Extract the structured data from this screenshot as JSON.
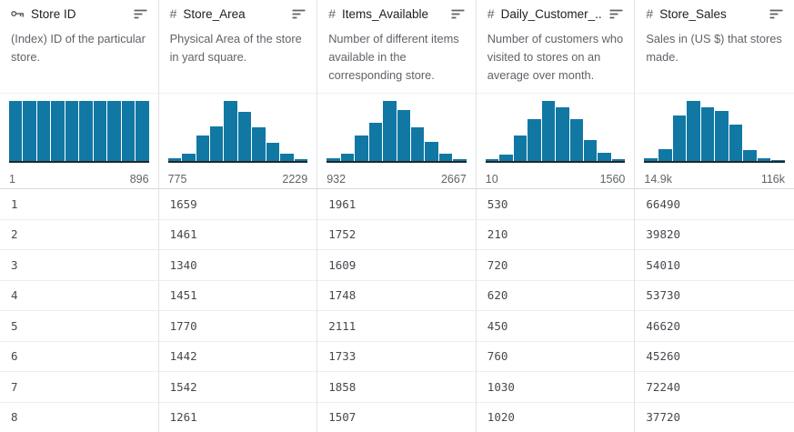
{
  "colors": {
    "histogram_bar": "#1178a4",
    "histogram_baseline": "#21262c",
    "header_text": "#202124",
    "secondary_text": "#5f6368",
    "cell_text": "#45494e",
    "column_border": "#e1e3e6",
    "row_border": "#ebedef"
  },
  "table": {
    "row_count": 8,
    "columns": [
      {
        "id": "store-id",
        "type_icon": "key-icon",
        "name": "Store ID",
        "description": "(Index) ID of the particular store.",
        "histogram": {
          "bins": [
            1,
            1,
            1,
            1,
            1,
            1,
            1,
            1,
            1,
            1
          ],
          "min_label": "1",
          "max_label": "896"
        },
        "values": [
          "1",
          "2",
          "3",
          "4",
          "5",
          "6",
          "7",
          "8"
        ]
      },
      {
        "id": "store-area",
        "type_icon": "hash-icon",
        "name": "Store_Area",
        "description": "Physical Area of the store in yard square.",
        "histogram": {
          "bins": [
            0.04,
            0.12,
            0.43,
            0.57,
            1.0,
            0.82,
            0.56,
            0.31,
            0.12,
            0.03
          ],
          "min_label": "775",
          "max_label": "2229"
        },
        "values": [
          "1659",
          "1461",
          "1340",
          "1451",
          "1770",
          "1442",
          "1542",
          "1261"
        ]
      },
      {
        "id": "items-available",
        "type_icon": "hash-icon",
        "name": "Items_Available",
        "description": "Number of different items available in the corresponding store.",
        "histogram": {
          "bins": [
            0.04,
            0.12,
            0.42,
            0.64,
            1.0,
            0.85,
            0.56,
            0.32,
            0.12,
            0.03
          ],
          "min_label": "932",
          "max_label": "2667"
        },
        "values": [
          "1961",
          "1752",
          "1609",
          "1748",
          "2111",
          "1733",
          "1858",
          "1507"
        ]
      },
      {
        "id": "daily-customer-count",
        "type_icon": "hash-icon",
        "name": "Daily_Customer_...",
        "description": "Number of customers who visited to stores on an average over month.",
        "histogram": {
          "bins": [
            0.03,
            0.1,
            0.42,
            0.7,
            1.0,
            0.9,
            0.7,
            0.35,
            0.13,
            0.03
          ],
          "min_label": "10",
          "max_label": "1560"
        },
        "values": [
          "530",
          "210",
          "720",
          "620",
          "450",
          "760",
          "1030",
          "1020"
        ]
      },
      {
        "id": "store-sales",
        "type_icon": "hash-icon",
        "name": "Store_Sales",
        "description": "Sales in (US $) that stores made.",
        "histogram": {
          "bins": [
            0.04,
            0.2,
            0.76,
            1.0,
            0.9,
            0.83,
            0.6,
            0.18,
            0.04,
            0.02
          ],
          "min_label": "14.9k",
          "max_label": "116k"
        },
        "values": [
          "66490",
          "39820",
          "54010",
          "53730",
          "46620",
          "45260",
          "72240",
          "37720"
        ]
      }
    ]
  },
  "chart_data": [
    {
      "type": "bar",
      "title": "Store ID distribution",
      "values": [
        1,
        1,
        1,
        1,
        1,
        1,
        1,
        1,
        1,
        1
      ],
      "xlabel_min": "1",
      "xlabel_max": "896"
    },
    {
      "type": "bar",
      "title": "Store_Area distribution",
      "values": [
        0.04,
        0.12,
        0.43,
        0.57,
        1.0,
        0.82,
        0.56,
        0.31,
        0.12,
        0.03
      ],
      "xlabel_min": "775",
      "xlabel_max": "2229"
    },
    {
      "type": "bar",
      "title": "Items_Available distribution",
      "values": [
        0.04,
        0.12,
        0.42,
        0.64,
        1.0,
        0.85,
        0.56,
        0.32,
        0.12,
        0.03
      ],
      "xlabel_min": "932",
      "xlabel_max": "2667"
    },
    {
      "type": "bar",
      "title": "Daily_Customer_Count distribution",
      "values": [
        0.03,
        0.1,
        0.42,
        0.7,
        1.0,
        0.9,
        0.7,
        0.35,
        0.13,
        0.03
      ],
      "xlabel_min": "10",
      "xlabel_max": "1560"
    },
    {
      "type": "bar",
      "title": "Store_Sales distribution",
      "values": [
        0.04,
        0.2,
        0.76,
        1.0,
        0.9,
        0.83,
        0.6,
        0.18,
        0.04,
        0.02
      ],
      "xlabel_min": "14.9k",
      "xlabel_max": "116k"
    }
  ]
}
